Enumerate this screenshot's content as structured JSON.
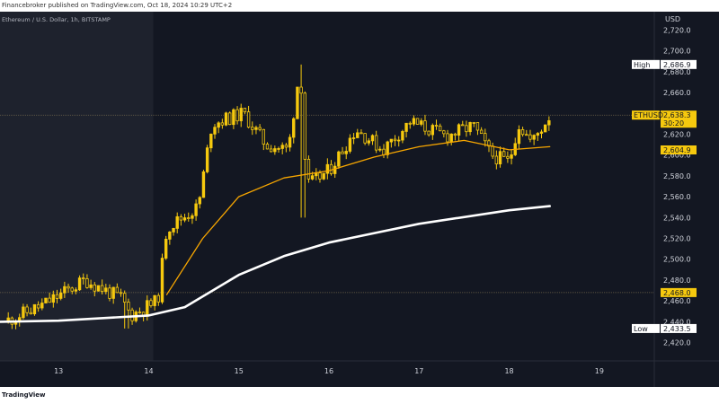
{
  "header": {
    "publisher_line": "Financebroker published on TradingView.com, Oct 18, 2024 10:29 UTC+2"
  },
  "footer": {
    "logo_text": "TradingView"
  },
  "chart_data": {
    "type": "candlestick",
    "title": "Ethereum / U.S. Dollar, 1h, BITSTAMP",
    "currency": "USD",
    "x_ticks": [
      "13",
      "14",
      "15",
      "16",
      "17",
      "18",
      "19"
    ],
    "y_ticks": [
      "2,420.0",
      "2,440.0",
      "2,460.0",
      "2,480.0",
      "2,500.0",
      "2,520.0",
      "2,540.0",
      "2,560.0",
      "2,580.0",
      "2,600.0",
      "2,620.0",
      "2,640.0",
      "2,660.0",
      "2,680.0",
      "2,700.0",
      "2,720.0"
    ],
    "ylim": [
      2405,
      2735
    ],
    "day_index_range": [
      12.35,
      19.6
    ],
    "grid": false,
    "price_labels": [
      {
        "tag": "High",
        "value": "2,686.9"
      },
      {
        "tag": "ETHUSD",
        "value": "2,638.3",
        "sub": "30:20"
      },
      {
        "tag": "",
        "value": "2,604.9"
      },
      {
        "tag": "",
        "value": "2,468.0"
      },
      {
        "tag": "Low",
        "value": "2,433.5"
      }
    ],
    "ohlc_keypoints": [
      [
        12.4,
        2440
      ],
      [
        12.8,
        2455
      ],
      [
        13.3,
        2480
      ],
      [
        13.7,
        2462
      ],
      [
        13.8,
        2446
      ],
      [
        14.1,
        2460
      ],
      [
        14.2,
        2530
      ],
      [
        14.55,
        2550
      ],
      [
        14.7,
        2630
      ],
      [
        15.05,
        2640
      ],
      [
        15.3,
        2610
      ],
      [
        15.55,
        2605
      ],
      [
        15.68,
        2685
      ],
      [
        15.75,
        2570
      ],
      [
        16.0,
        2585
      ],
      [
        16.3,
        2625
      ],
      [
        16.6,
        2605
      ],
      [
        16.9,
        2632
      ],
      [
        17.3,
        2618
      ],
      [
        17.6,
        2628
      ],
      [
        17.8,
        2600
      ],
      [
        18.0,
        2593
      ],
      [
        18.1,
        2630
      ],
      [
        18.25,
        2612
      ],
      [
        18.45,
        2638
      ]
    ],
    "series": [
      {
        "name": "",
        "color": "#f7a600",
        "points": [
          [
            14.2,
            2466
          ],
          [
            14.6,
            2520
          ],
          [
            15.0,
            2560
          ],
          [
            15.5,
            2578
          ],
          [
            16.0,
            2585
          ],
          [
            16.5,
            2598
          ],
          [
            17.0,
            2608
          ],
          [
            17.5,
            2614
          ],
          [
            18.0,
            2605
          ],
          [
            18.45,
            2608
          ]
        ]
      },
      {
        "name": "",
        "color": "#ffffff",
        "points": [
          [
            12.35,
            2440
          ],
          [
            13.0,
            2441
          ],
          [
            14.0,
            2446
          ],
          [
            14.4,
            2454
          ],
          [
            15.0,
            2485
          ],
          [
            15.5,
            2503
          ],
          [
            16.0,
            2516
          ],
          [
            17.0,
            2534
          ],
          [
            18.0,
            2547
          ],
          [
            18.45,
            2551
          ]
        ]
      }
    ],
    "horizontal_lines": [
      2638.3,
      2468.0
    ],
    "highlight_region": {
      "from_day": 12.35,
      "to_day": 14.05
    },
    "colors": {
      "candle": "#f6c90e",
      "shadow": "#f6c90e",
      "ema_fast": "#f7a600",
      "ema_slow": "#ffffff",
      "label_bg": "#f6c90e",
      "label_text": "#131722"
    }
  }
}
